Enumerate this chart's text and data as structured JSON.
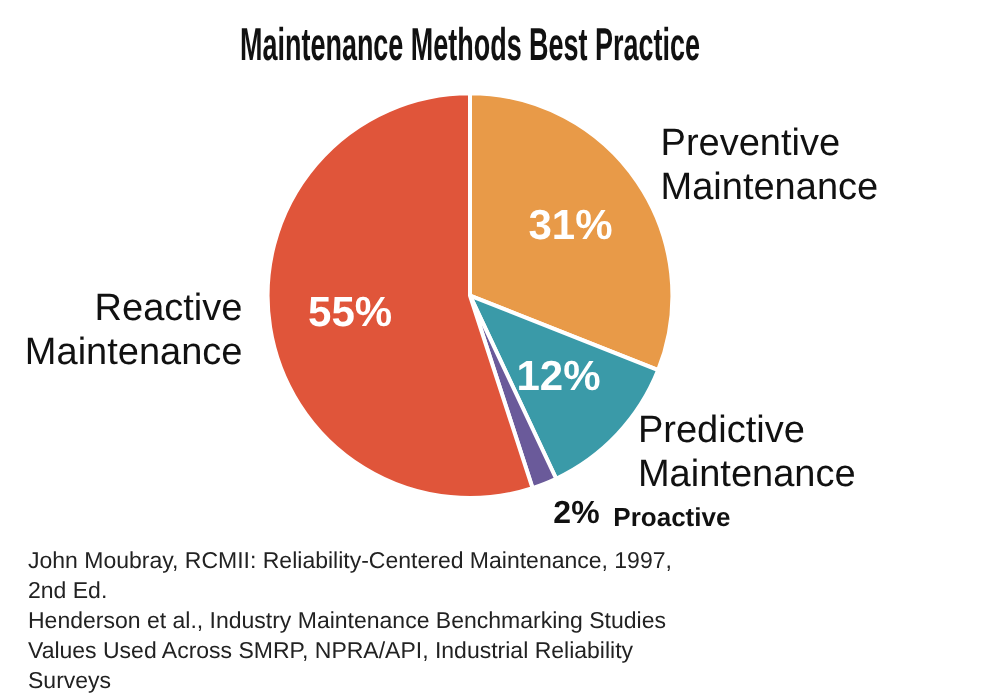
{
  "chart_data": {
    "type": "pie",
    "title": "Maintenance Methods Best Practice",
    "categories": [
      "Preventive Maintenance",
      "Predictive Maintenance",
      "Proactive",
      "Reactive Maintenance"
    ],
    "values": [
      31,
      12,
      2,
      55
    ],
    "value_labels": [
      "31%",
      "12%",
      "2%",
      "55%"
    ],
    "colors": [
      "#e89a48",
      "#3a9aa8",
      "#6a5a9a",
      "#e0553a"
    ],
    "annotations": [
      "John Moubray, RCMII: Reliability-Centered Maintenance, 1997, 2nd Ed.",
      "Henderson et al., Industry Maintenance Benchmarking Studies",
      "Values Used Across SMRP, NPRA/API, Industrial Reliability Surveys"
    ]
  }
}
